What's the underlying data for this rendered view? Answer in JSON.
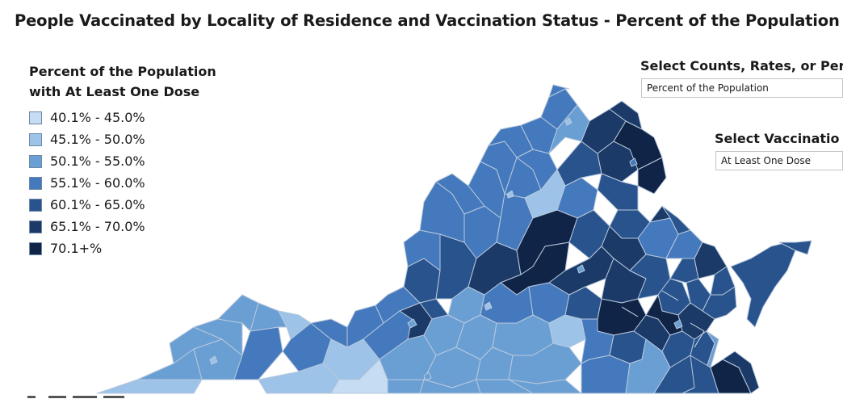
{
  "title": "People Vaccinated by Locality of Residence and Vaccination Status - Percent of the Population",
  "legend": {
    "title_line1": "Percent of the Population",
    "title_line2": "with At Least One Dose",
    "items": [
      {
        "label": "40.1% - 45.0%",
        "color": "#c6dcf2"
      },
      {
        "label": "45.1% - 50.0%",
        "color": "#9dc3e8"
      },
      {
        "label": "50.1% - 55.0%",
        "color": "#6a9fd4"
      },
      {
        "label": "55.1% - 60.0%",
        "color": "#4479bd"
      },
      {
        "label": "60.1% - 65.0%",
        "color": "#28538c"
      },
      {
        "label": "65.1% - 70.0%",
        "color": "#1b3a68"
      },
      {
        "label": "70.1+%",
        "color": "#0f2447"
      }
    ]
  },
  "filters": {
    "measure_label": "Select Counts, Rates, or Perc",
    "measure_value": "Percent of the Population",
    "status_label": "Select Vaccinatio",
    "status_value": "At Least One Dose"
  }
}
